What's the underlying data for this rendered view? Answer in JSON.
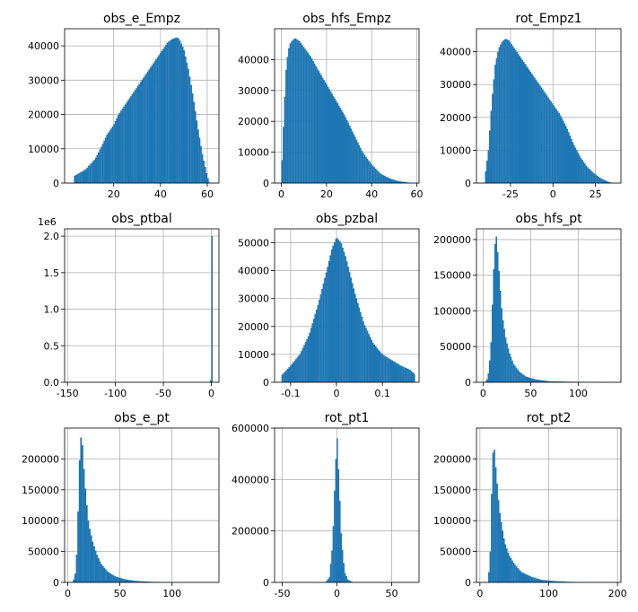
{
  "chart_data": [
    {
      "type": "bar",
      "title": "obs_e_Empz",
      "xlim": [
        -1,
        65
      ],
      "ylim": [
        0,
        45000
      ],
      "xticks": [
        20,
        40,
        60
      ],
      "yticks": [
        0,
        10000,
        20000,
        30000,
        40000
      ],
      "x": [
        3,
        8,
        12,
        15,
        17,
        18,
        20,
        22,
        25,
        28,
        32,
        36,
        40,
        43,
        45,
        47,
        48,
        50,
        52,
        54,
        56,
        58,
        60,
        61
      ],
      "values": [
        2000,
        4000,
        7000,
        11000,
        14000,
        15000,
        17000,
        20000,
        23000,
        26000,
        30000,
        34000,
        38000,
        41000,
        42000,
        42500,
        42000,
        39000,
        33000,
        25000,
        16000,
        8000,
        2000,
        0
      ],
      "x_step": 0.6,
      "grid": true,
      "legend": "none"
    },
    {
      "type": "bar",
      "title": "obs_hfs_Empz",
      "xlim": [
        -3,
        61
      ],
      "ylim": [
        0,
        50000
      ],
      "xticks": [
        0,
        20,
        40,
        60
      ],
      "yticks": [
        0,
        10000,
        20000,
        30000,
        40000
      ],
      "x": [
        0,
        1,
        2,
        3,
        4,
        6,
        8,
        10,
        13,
        16,
        20,
        24,
        28,
        32,
        36,
        40,
        44,
        48,
        52,
        56,
        58
      ],
      "values": [
        2000,
        20000,
        36000,
        43000,
        45500,
        47000,
        46000,
        44000,
        41000,
        37000,
        32000,
        27000,
        22000,
        16000,
        10000,
        6000,
        3000,
        1500,
        600,
        200,
        0
      ],
      "x_step": 0.6,
      "grid": true,
      "legend": "none"
    },
    {
      "type": "bar",
      "title": "rot_Empz1",
      "xlim": [
        -45,
        40
      ],
      "ylim": [
        0,
        47000
      ],
      "xticks": [
        -25,
        0,
        25
      ],
      "yticks": [
        0,
        10000,
        20000,
        30000,
        40000
      ],
      "x": [
        -40,
        -38,
        -36,
        -34,
        -32,
        -30,
        -28,
        -26,
        -24,
        -20,
        -16,
        -12,
        -8,
        -4,
        0,
        4,
        8,
        12,
        16,
        20,
        24,
        28,
        32,
        35
      ],
      "values": [
        2000,
        10000,
        25000,
        36000,
        41000,
        43000,
        44000,
        43500,
        42000,
        39000,
        36000,
        33000,
        30000,
        27000,
        24000,
        21000,
        17000,
        12000,
        8000,
        5000,
        3000,
        1500,
        500,
        0
      ],
      "x_step": 0.8,
      "grid": true,
      "legend": "none"
    },
    {
      "type": "bar",
      "title": "obs_ptbal",
      "scale_label": "1e6",
      "xlim": [
        -153,
        8
      ],
      "ylim": [
        0,
        2100000
      ],
      "xticks": [
        -150,
        -100,
        -50,
        0
      ],
      "yticks": [
        0,
        500000,
        1000000,
        1500000,
        2000000
      ],
      "ytick_labels": [
        "0.0",
        "0.5",
        "1.0",
        "1.5",
        "2.0"
      ],
      "x": [
        -0.8,
        0.8
      ],
      "values": [
        30000,
        2000000
      ],
      "x_step": 1.4,
      "grid": true,
      "legend": "none"
    },
    {
      "type": "bar",
      "title": "obs_pzbal",
      "xlim": [
        -0.135,
        0.18
      ],
      "ylim": [
        0,
        55000
      ],
      "xticks": [
        -0.1,
        0.0,
        0.1
      ],
      "yticks": [
        0,
        10000,
        20000,
        30000,
        40000,
        50000
      ],
      "x": [
        -0.12,
        -0.1,
        -0.08,
        -0.06,
        -0.04,
        -0.02,
        -0.01,
        0.0,
        0.01,
        0.02,
        0.04,
        0.06,
        0.08,
        0.1,
        0.12,
        0.14,
        0.16,
        0.17
      ],
      "values": [
        2500,
        6000,
        10000,
        17000,
        28000,
        41000,
        48000,
        52000,
        50000,
        45000,
        32000,
        21000,
        14000,
        10000,
        8000,
        6000,
        4500,
        3000
      ],
      "x_step": 0.003,
      "grid": true,
      "legend": "none"
    },
    {
      "type": "bar",
      "title": "obs_hfs_pt",
      "xlim": [
        -7,
        145
      ],
      "ylim": [
        0,
        215000
      ],
      "xticks": [
        0,
        50,
        100
      ],
      "yticks": [
        0,
        50000,
        100000,
        150000,
        200000
      ],
      "x": [
        2,
        5,
        8,
        10,
        12,
        14,
        16,
        18,
        20,
        24,
        28,
        32,
        38,
        45,
        55,
        70,
        90,
        110,
        130,
        140
      ],
      "values": [
        0,
        6000,
        45000,
        120000,
        190000,
        205000,
        170000,
        130000,
        95000,
        60000,
        40000,
        26000,
        15000,
        8000,
        4000,
        1500,
        800,
        400,
        200,
        0
      ],
      "x_step": 1.4,
      "grid": true,
      "legend": "none"
    },
    {
      "type": "bar",
      "title": "obs_e_pt",
      "xlim": [
        -3,
        145
      ],
      "ylim": [
        0,
        250000
      ],
      "xticks": [
        0,
        50,
        100
      ],
      "yticks": [
        0,
        50000,
        100000,
        150000,
        200000
      ],
      "x": [
        5,
        8,
        10,
        12,
        14,
        16,
        18,
        20,
        24,
        28,
        32,
        38,
        45,
        55,
        65,
        80,
        100,
        120,
        140
      ],
      "values": [
        0,
        20000,
        120000,
        240000,
        225000,
        170000,
        130000,
        95000,
        65000,
        45000,
        30000,
        18000,
        10000,
        5000,
        2500,
        1000,
        400,
        150,
        0
      ],
      "x_step": 1.4,
      "grid": true,
      "legend": "none"
    },
    {
      "type": "bar",
      "title": "rot_pt1",
      "xlim": [
        -57,
        75
      ],
      "ylim": [
        0,
        600000
      ],
      "xticks": [
        -50,
        0,
        50
      ],
      "yticks": [
        0,
        200000,
        400000,
        600000
      ],
      "x": [
        -10,
        -7,
        -4,
        -2,
        0,
        2,
        4,
        7,
        10,
        15
      ],
      "values": [
        3000,
        20000,
        150000,
        380000,
        580000,
        380000,
        170000,
        40000,
        10000,
        0
      ],
      "x_step": 1.2,
      "grid": true,
      "legend": "none"
    },
    {
      "type": "bar",
      "title": "rot_pt2",
      "xlim": [
        -5,
        205
      ],
      "ylim": [
        0,
        250000
      ],
      "xticks": [
        0,
        100,
        200
      ],
      "yticks": [
        0,
        50000,
        100000,
        150000,
        200000
      ],
      "x": [
        12,
        15,
        18,
        20,
        22,
        25,
        28,
        32,
        36,
        42,
        50,
        60,
        75,
        90,
        110,
        130,
        150,
        170,
        195
      ],
      "values": [
        0,
        50000,
        190000,
        230000,
        200000,
        160000,
        120000,
        90000,
        65000,
        45000,
        30000,
        17000,
        9000,
        4000,
        2000,
        1000,
        500,
        200,
        0
      ],
      "x_step": 2,
      "grid": true,
      "legend": "none"
    }
  ]
}
